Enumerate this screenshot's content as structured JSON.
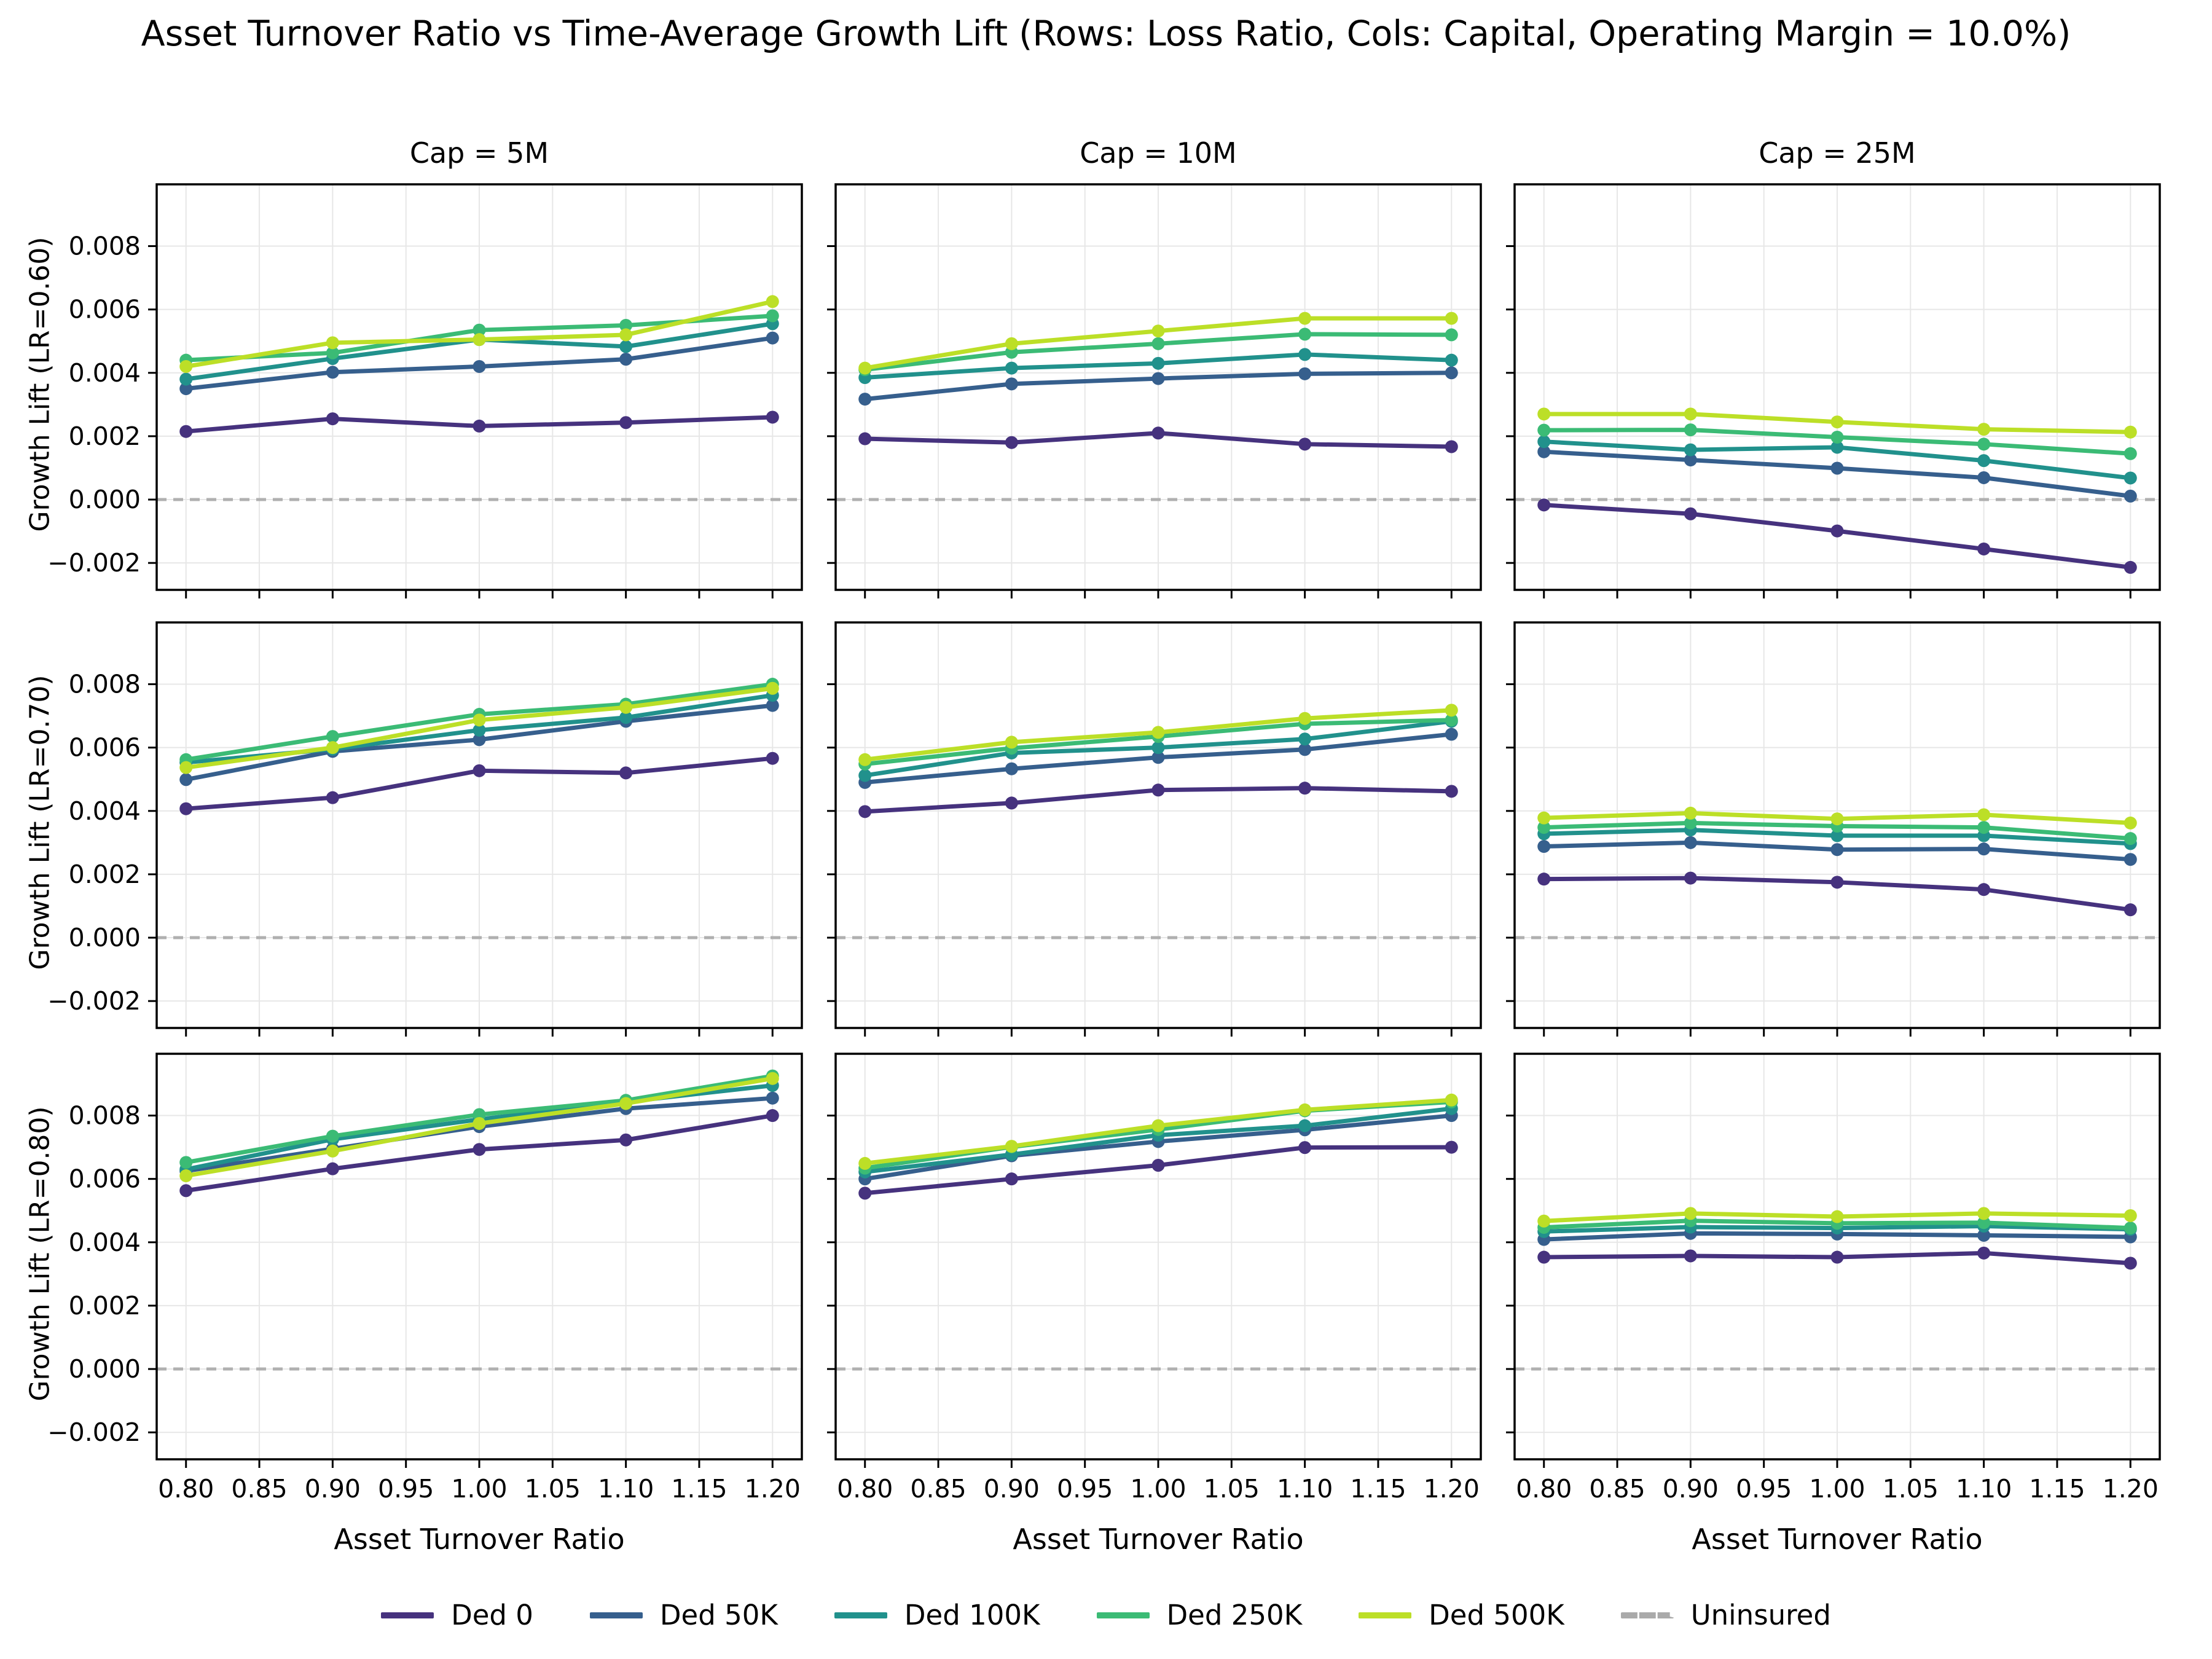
{
  "title": "Asset Turnover Ratio vs Time-Average Growth Lift (Rows: Loss Ratio, Cols: Capital, Operating Margin = 10.0%)",
  "legend": {
    "items": [
      {
        "label": "Ded 0",
        "color": "#46327e",
        "dashed": false
      },
      {
        "label": "Ded 50K",
        "color": "#365f8d",
        "dashed": false
      },
      {
        "label": "Ded 100K",
        "color": "#21918c",
        "dashed": false
      },
      {
        "label": "Ded 250K",
        "color": "#3bbb75",
        "dashed": false
      },
      {
        "label": "Ded 500K",
        "color": "#bcdf27",
        "dashed": false
      },
      {
        "label": "Uninsured",
        "color": "#aaaaaa",
        "dashed": true
      }
    ]
  },
  "chart_data": {
    "type": "line",
    "x": [
      0.8,
      0.9,
      1.0,
      1.1,
      1.2
    ],
    "x_tick_labels": [
      "0.80",
      "0.85",
      "0.90",
      "0.95",
      "1.00",
      "1.05",
      "1.10",
      "1.15",
      "1.20"
    ],
    "x_ticks": [
      0.8,
      0.85,
      0.9,
      0.95,
      1.0,
      1.05,
      1.1,
      1.15,
      1.2
    ],
    "xlim": [
      0.78,
      1.22
    ],
    "xlabel": "Asset Turnover Ratio",
    "ylim": [
      -0.00285,
      0.00995
    ],
    "y_ticks": [
      -0.002,
      0.0,
      0.002,
      0.004,
      0.006,
      0.008
    ],
    "y_tick_labels": [
      "−0.002",
      "0.000",
      "0.002",
      "0.004",
      "0.006",
      "0.008"
    ],
    "grid": true,
    "legend_position": "bottom",
    "uninsured_baseline": 0.0,
    "cols": [
      "Cap = 5M",
      "Cap = 10M",
      "Cap = 25M"
    ],
    "rows": [
      "Growth Lift (LR=0.60)",
      "Growth Lift (LR=0.70)",
      "Growth Lift (LR=0.80)"
    ],
    "series_names": [
      "Ded 0",
      "Ded 50K",
      "Ded 100K",
      "Ded 250K",
      "Ded 500K"
    ],
    "panels": [
      [
        {
          "row": "LR=0.60",
          "col": "Cap = 5M",
          "series": [
            {
              "name": "Ded 0",
              "values": [
                0.00215,
                0.00255,
                0.00232,
                0.00243,
                0.0026
              ]
            },
            {
              "name": "Ded 50K",
              "values": [
                0.0035,
                0.00402,
                0.0042,
                0.00443,
                0.0051
              ]
            },
            {
              "name": "Ded 100K",
              "values": [
                0.0038,
                0.00445,
                0.00505,
                0.00483,
                0.00555
              ]
            },
            {
              "name": "Ded 250K",
              "values": [
                0.0044,
                0.00463,
                0.00535,
                0.0055,
                0.0058
              ]
            },
            {
              "name": "Ded 500K",
              "values": [
                0.0042,
                0.00495,
                0.00505,
                0.0052,
                0.00625
              ]
            }
          ]
        },
        {
          "row": "LR=0.60",
          "col": "Cap = 10M",
          "series": [
            {
              "name": "Ded 0",
              "values": [
                0.00192,
                0.0018,
                0.0021,
                0.00175,
                0.00167
              ]
            },
            {
              "name": "Ded 50K",
              "values": [
                0.00317,
                0.00365,
                0.00382,
                0.00397,
                0.004
              ]
            },
            {
              "name": "Ded 100K",
              "values": [
                0.00385,
                0.00415,
                0.0043,
                0.00458,
                0.0044
              ]
            },
            {
              "name": "Ded 250K",
              "values": [
                0.0041,
                0.00465,
                0.00492,
                0.00522,
                0.0052
              ]
            },
            {
              "name": "Ded 500K",
              "values": [
                0.00415,
                0.00492,
                0.00532,
                0.00572,
                0.00572
              ]
            }
          ]
        },
        {
          "row": "LR=0.60",
          "col": "Cap = 25M",
          "series": [
            {
              "name": "Ded 0",
              "values": [
                -0.00017,
                -0.00045,
                -0.00099,
                -0.00156,
                -0.00214
              ]
            },
            {
              "name": "Ded 50K",
              "values": [
                0.00151,
                0.00125,
                0.00099,
                0.00069,
                0.00011
              ]
            },
            {
              "name": "Ded 100K",
              "values": [
                0.00183,
                0.00157,
                0.00165,
                0.00123,
                0.00068
              ]
            },
            {
              "name": "Ded 250K",
              "values": [
                0.00219,
                0.0022,
                0.00197,
                0.00175,
                0.00145
              ]
            },
            {
              "name": "Ded 500K",
              "values": [
                0.0027,
                0.0027,
                0.00245,
                0.00222,
                0.00213
              ]
            }
          ]
        }
      ],
      [
        {
          "row": "LR=0.70",
          "col": "Cap = 5M",
          "series": [
            {
              "name": "Ded 0",
              "values": [
                0.00407,
                0.00442,
                0.00527,
                0.0052,
                0.00566
              ]
            },
            {
              "name": "Ded 50K",
              "values": [
                0.00499,
                0.00588,
                0.00625,
                0.00683,
                0.00733
              ]
            },
            {
              "name": "Ded 100K",
              "values": [
                0.00553,
                0.00595,
                0.00655,
                0.00695,
                0.00765
              ]
            },
            {
              "name": "Ded 250K",
              "values": [
                0.00562,
                0.00635,
                0.00705,
                0.00737,
                0.008
              ]
            },
            {
              "name": "Ded 500K",
              "values": [
                0.00537,
                0.006,
                0.00687,
                0.00727,
                0.00787
              ]
            }
          ]
        },
        {
          "row": "LR=0.70",
          "col": "Cap = 10M",
          "series": [
            {
              "name": "Ded 0",
              "values": [
                0.00398,
                0.00425,
                0.00466,
                0.00472,
                0.00462
              ]
            },
            {
              "name": "Ded 50K",
              "values": [
                0.0049,
                0.00533,
                0.00569,
                0.00594,
                0.00642
              ]
            },
            {
              "name": "Ded 100K",
              "values": [
                0.00512,
                0.00583,
                0.006,
                0.00627,
                0.00683
              ]
            },
            {
              "name": "Ded 250K",
              "values": [
                0.00548,
                0.00598,
                0.00635,
                0.00675,
                0.00687
              ]
            },
            {
              "name": "Ded 500K",
              "values": [
                0.00562,
                0.00617,
                0.00648,
                0.00692,
                0.00718
              ]
            }
          ]
        },
        {
          "row": "LR=0.70",
          "col": "Cap = 25M",
          "series": [
            {
              "name": "Ded 0",
              "values": [
                0.00185,
                0.00188,
                0.00175,
                0.00152,
                0.00088
              ]
            },
            {
              "name": "Ded 50K",
              "values": [
                0.00288,
                0.003,
                0.00278,
                0.0028,
                0.00247
              ]
            },
            {
              "name": "Ded 100K",
              "values": [
                0.00328,
                0.0034,
                0.00322,
                0.00322,
                0.00297
              ]
            },
            {
              "name": "Ded 250K",
              "values": [
                0.00348,
                0.00362,
                0.00352,
                0.00348,
                0.00313
              ]
            },
            {
              "name": "Ded 500K",
              "values": [
                0.00378,
                0.00393,
                0.00375,
                0.00388,
                0.00362
              ]
            }
          ]
        }
      ],
      [
        {
          "row": "LR=0.80",
          "col": "Cap = 5M",
          "series": [
            {
              "name": "Ded 0",
              "values": [
                0.00563,
                0.00632,
                0.00693,
                0.00723,
                0.008
              ]
            },
            {
              "name": "Ded 50K",
              "values": [
                0.00625,
                0.00695,
                0.00765,
                0.00822,
                0.00855
              ]
            },
            {
              "name": "Ded 100K",
              "values": [
                0.0063,
                0.00725,
                0.00788,
                0.00843,
                0.00895
              ]
            },
            {
              "name": "Ded 250K",
              "values": [
                0.00652,
                0.00735,
                0.00803,
                0.00848,
                0.00925
              ]
            },
            {
              "name": "Ded 500K",
              "values": [
                0.0061,
                0.00688,
                0.00775,
                0.00838,
                0.00917
              ]
            }
          ]
        },
        {
          "row": "LR=0.80",
          "col": "Cap = 10M",
          "series": [
            {
              "name": "Ded 0",
              "values": [
                0.00555,
                0.006,
                0.00643,
                0.00699,
                0.007
              ]
            },
            {
              "name": "Ded 50K",
              "values": [
                0.006,
                0.00673,
                0.00718,
                0.00755,
                0.008
              ]
            },
            {
              "name": "Ded 100K",
              "values": [
                0.00622,
                0.00677,
                0.00738,
                0.00768,
                0.00822
              ]
            },
            {
              "name": "Ded 250K",
              "values": [
                0.00634,
                0.00701,
                0.00756,
                0.00815,
                0.00843
              ]
            },
            {
              "name": "Ded 500K",
              "values": [
                0.00649,
                0.00703,
                0.00768,
                0.00818,
                0.00849
              ]
            }
          ]
        },
        {
          "row": "LR=0.80",
          "col": "Cap = 25M",
          "series": [
            {
              "name": "Ded 0",
              "values": [
                0.00353,
                0.00357,
                0.00353,
                0.00366,
                0.00334
              ]
            },
            {
              "name": "Ded 50K",
              "values": [
                0.00409,
                0.00428,
                0.00426,
                0.00422,
                0.00417
              ]
            },
            {
              "name": "Ded 100K",
              "values": [
                0.00434,
                0.00448,
                0.00445,
                0.00451,
                0.00441
              ]
            },
            {
              "name": "Ded 250K",
              "values": [
                0.00447,
                0.00468,
                0.0046,
                0.00462,
                0.00445
              ]
            },
            {
              "name": "Ded 500K",
              "values": [
                0.00467,
                0.00491,
                0.00481,
                0.00491,
                0.00484
              ]
            }
          ]
        }
      ]
    ]
  },
  "style_colors": {
    "grid": "#e7e7e7",
    "spine": "#000000",
    "uninsured_line": "#b0b0b0"
  }
}
